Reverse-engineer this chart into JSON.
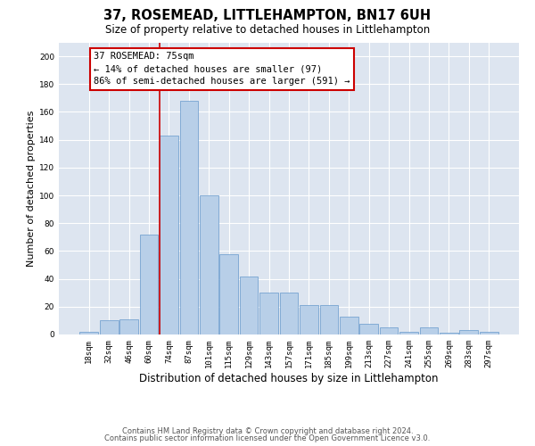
{
  "title": "37, ROSEMEAD, LITTLEHAMPTON, BN17 6UH",
  "subtitle": "Size of property relative to detached houses in Littlehampton",
  "xlabel": "Distribution of detached houses by size in Littlehampton",
  "ylabel": "Number of detached properties",
  "footnote1": "Contains HM Land Registry data © Crown copyright and database right 2024.",
  "footnote2": "Contains public sector information licensed under the Open Government Licence v3.0.",
  "categories": [
    "18sqm",
    "32sqm",
    "46sqm",
    "60sqm",
    "74sqm",
    "87sqm",
    "101sqm",
    "115sqm",
    "129sqm",
    "143sqm",
    "157sqm",
    "171sqm",
    "185sqm",
    "199sqm",
    "213sqm",
    "227sqm",
    "241sqm",
    "255sqm",
    "269sqm",
    "283sqm",
    "297sqm"
  ],
  "values": [
    2,
    10,
    11,
    72,
    143,
    168,
    100,
    58,
    42,
    30,
    30,
    21,
    21,
    13,
    8,
    5,
    2,
    5,
    1,
    3,
    2
  ],
  "bar_color": "#b8cfe8",
  "bar_edge_color": "#6699cc",
  "vline_index": 4,
  "vline_color": "#cc0000",
  "annotation_text": "37 ROSEMEAD: 75sqm\n← 14% of detached houses are smaller (97)\n86% of semi-detached houses are larger (591) →",
  "annotation_box_facecolor": "white",
  "annotation_box_edgecolor": "#cc0000",
  "ylim": [
    0,
    210
  ],
  "yticks": [
    0,
    20,
    40,
    60,
    80,
    100,
    120,
    140,
    160,
    180,
    200
  ],
  "background_color": "#dde5f0",
  "grid_color": "white",
  "title_fontsize": 10.5,
  "subtitle_fontsize": 8.5,
  "xlabel_fontsize": 8.5,
  "ylabel_fontsize": 8,
  "tick_fontsize": 6.5,
  "annotation_fontsize": 7.5,
  "footnote_fontsize": 6.0
}
